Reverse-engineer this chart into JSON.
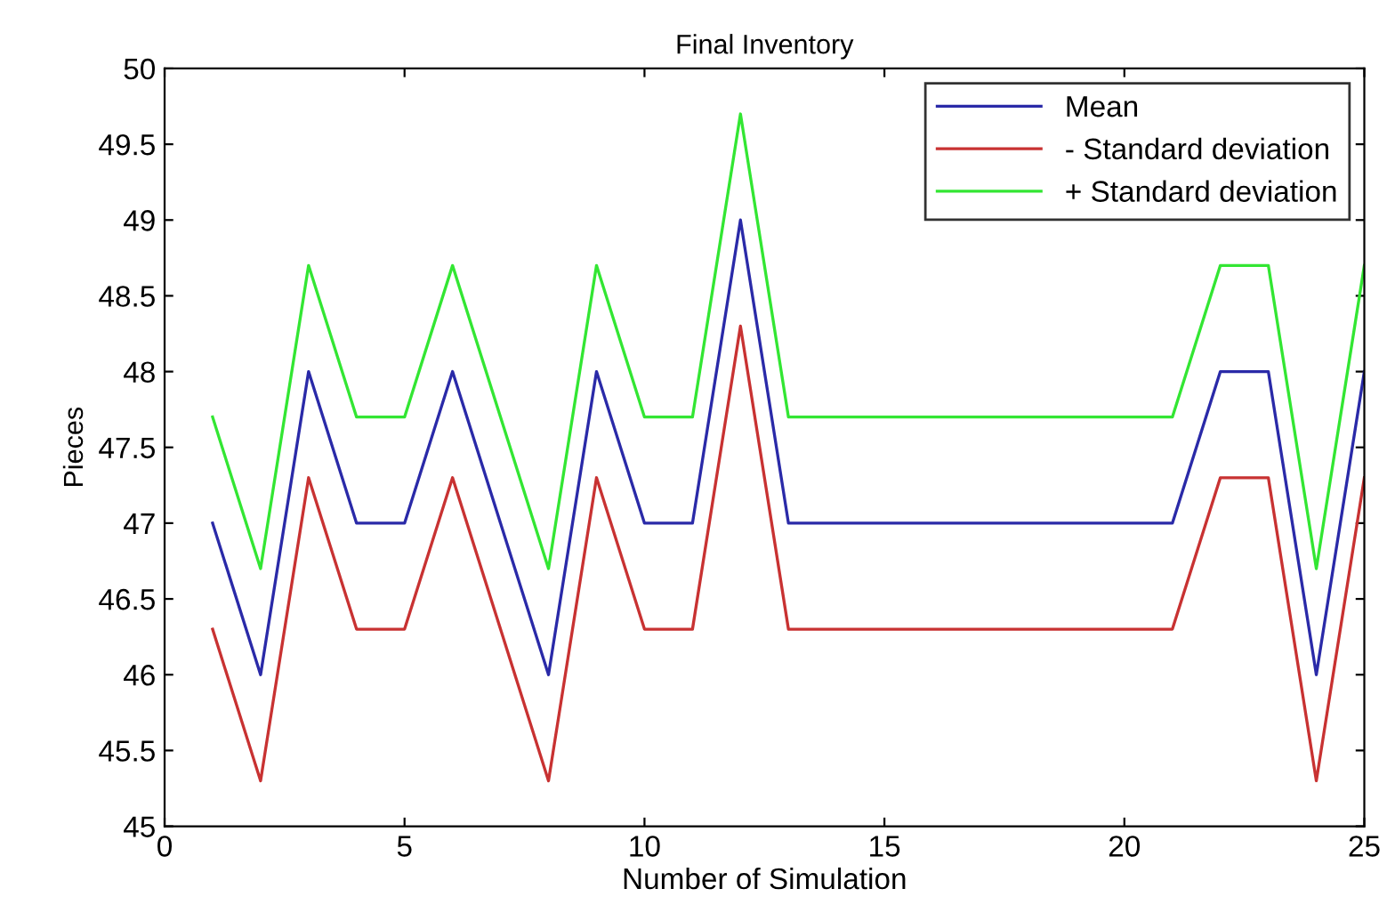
{
  "chart_data": {
    "type": "line",
    "title": "Final Inventory",
    "xlabel": "Number of Simulation",
    "ylabel": "Pieces",
    "x": [
      1,
      2,
      3,
      4,
      5,
      6,
      7,
      8,
      9,
      10,
      11,
      12,
      13,
      14,
      15,
      16,
      17,
      18,
      19,
      20,
      21,
      22,
      23,
      24,
      25
    ],
    "series": [
      {
        "name": "Mean",
        "color": "#2a2aa8",
        "values": [
          47,
          46,
          48,
          47,
          47,
          48,
          47,
          46,
          48,
          47,
          47,
          49,
          47,
          47,
          47,
          47,
          47,
          47,
          47,
          47,
          47,
          48,
          48,
          46,
          48
        ]
      },
      {
        "name": "- Standard deviation",
        "color": "#c83232",
        "values": [
          46.3,
          45.3,
          47.3,
          46.3,
          46.3,
          47.3,
          46.3,
          45.3,
          47.3,
          46.3,
          46.3,
          48.3,
          46.3,
          46.3,
          46.3,
          46.3,
          46.3,
          46.3,
          46.3,
          46.3,
          46.3,
          47.3,
          47.3,
          45.3,
          47.3
        ]
      },
      {
        "name": "+ Standard deviation",
        "color": "#33e633",
        "values": [
          47.7,
          46.7,
          48.7,
          47.7,
          47.7,
          48.7,
          47.7,
          46.7,
          48.7,
          47.7,
          47.7,
          49.7,
          47.7,
          47.7,
          47.7,
          47.7,
          47.7,
          47.7,
          47.7,
          47.7,
          47.7,
          48.7,
          48.7,
          46.7,
          48.7
        ]
      }
    ],
    "xlim": [
      0,
      25
    ],
    "xticks": [
      0,
      5,
      10,
      15,
      20,
      25
    ],
    "ylim": [
      45,
      50
    ],
    "yticks": [
      45,
      45.5,
      46,
      46.5,
      47,
      47.5,
      48,
      48.5,
      49,
      49.5,
      50
    ],
    "grid": false,
    "legend": "top right",
    "marker": "none",
    "line_style": "solid"
  }
}
